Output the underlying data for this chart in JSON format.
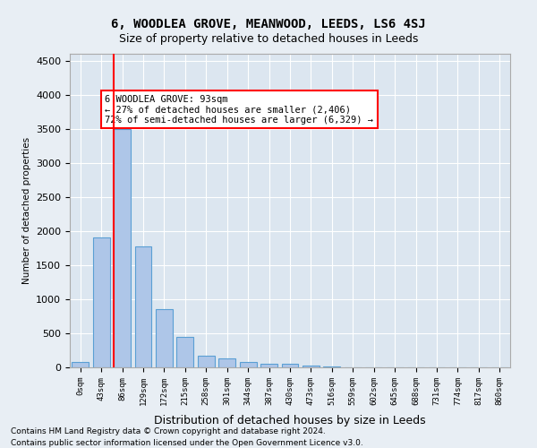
{
  "title": "6, WOODLEA GROVE, MEANWOOD, LEEDS, LS6 4SJ",
  "subtitle": "Size of property relative to detached houses in Leeds",
  "xlabel": "Distribution of detached houses by size in Leeds",
  "ylabel": "Number of detached properties",
  "bar_color": "#aec6e8",
  "bar_edge_color": "#5a9fd4",
  "vline_color": "red",
  "vline_x": 2,
  "annotation_text": "6 WOODLEA GROVE: 93sqm\n← 27% of detached houses are smaller (2,406)\n72% of semi-detached houses are larger (6,329) →",
  "categories": [
    "0sqm",
    "43sqm",
    "86sqm",
    "129sqm",
    "172sqm",
    "215sqm",
    "258sqm",
    "301sqm",
    "344sqm",
    "387sqm",
    "430sqm",
    "473sqm",
    "516sqm",
    "559sqm",
    "602sqm",
    "645sqm",
    "688sqm",
    "731sqm",
    "774sqm",
    "817sqm",
    "860sqm"
  ],
  "bar_heights": [
    75,
    1900,
    3500,
    1775,
    850,
    450,
    175,
    125,
    75,
    50,
    50,
    25,
    10,
    5,
    3,
    2,
    1,
    1,
    1,
    1,
    0
  ],
  "ylim": [
    0,
    4600
  ],
  "yticks": [
    0,
    500,
    1000,
    1500,
    2000,
    2500,
    3000,
    3500,
    4000,
    4500
  ],
  "footnote1": "Contains HM Land Registry data © Crown copyright and database right 2024.",
  "footnote2": "Contains public sector information licensed under the Open Government Licence v3.0.",
  "background_color": "#e8eef4",
  "plot_bg_color": "#dce6f0",
  "grid_color": "white"
}
